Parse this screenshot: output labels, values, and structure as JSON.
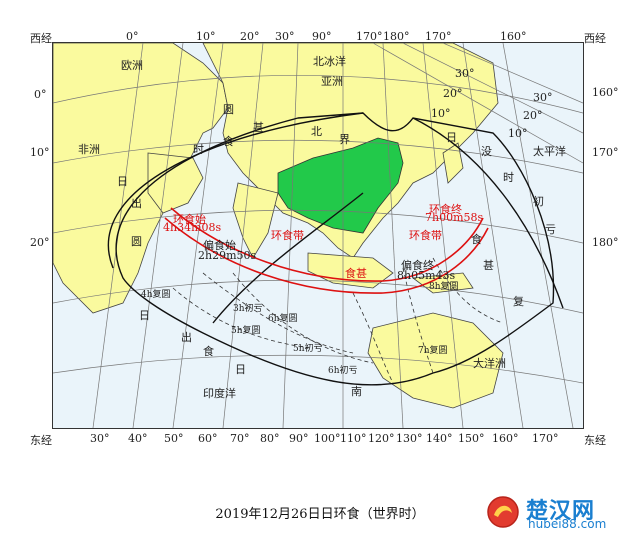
{
  "map": {
    "caption": "2019年12月26日日环食（世界时）",
    "corner_west_left": "西经",
    "corner_west_right": "西经",
    "corner_east_left": "东经",
    "corner_east_right": "东经",
    "top_longitudes": [
      "0°",
      "10°",
      "20°",
      "30°",
      "90°",
      "170°",
      "180°",
      "170°",
      "160°"
    ],
    "bottom_longitudes": [
      "30°",
      "40°",
      "50°",
      "60°",
      "70°",
      "80°",
      "90°",
      "100°",
      "110°",
      "120°",
      "130°",
      "140°",
      "150°",
      "160°",
      "170°"
    ],
    "left_latitudes": [
      "0°",
      "10°",
      "20°"
    ],
    "right_latitudes": [
      "160°",
      "170°",
      "180°"
    ],
    "regions": [
      "欧洲",
      "北冰洋",
      "亚洲",
      "非洲",
      "太平洋",
      "大洋洲",
      "印度洋"
    ],
    "diagonal_graticule": [
      "30°",
      "20°",
      "10°",
      "30°",
      "20°",
      "10°"
    ],
    "annular_start_label": "环食始",
    "annular_start_time": "4h34m08s",
    "annular_end_label": "环食终",
    "annular_end_time": "7h00m58s",
    "eclipse_start_label": "偏食始",
    "eclipse_start_time": "2h29m50s",
    "eclipse_end_label": "偏食终",
    "eclipse_end_time": "8h05m43s",
    "band_text_left": "环食带",
    "band_text_mid": "食甚",
    "band_text_right": "环食带",
    "outline_labels": [
      "日",
      "出",
      "时",
      "食",
      "甚",
      "圆",
      "北",
      "界",
      "日",
      "没",
      "时",
      "初",
      "亏",
      "食",
      "甚",
      "复",
      "圆",
      "日",
      "出",
      "南",
      "界",
      "南",
      "日",
      "食"
    ],
    "contact_labels": [
      "3h初亏",
      "5h初亏",
      "6h初亏",
      "4h复圆",
      "5h复圆",
      "6h复圆",
      "7h复圆",
      "8h复圆"
    ],
    "watermark_title": "楚汉网",
    "watermark_url": "hubei88.com"
  }
}
